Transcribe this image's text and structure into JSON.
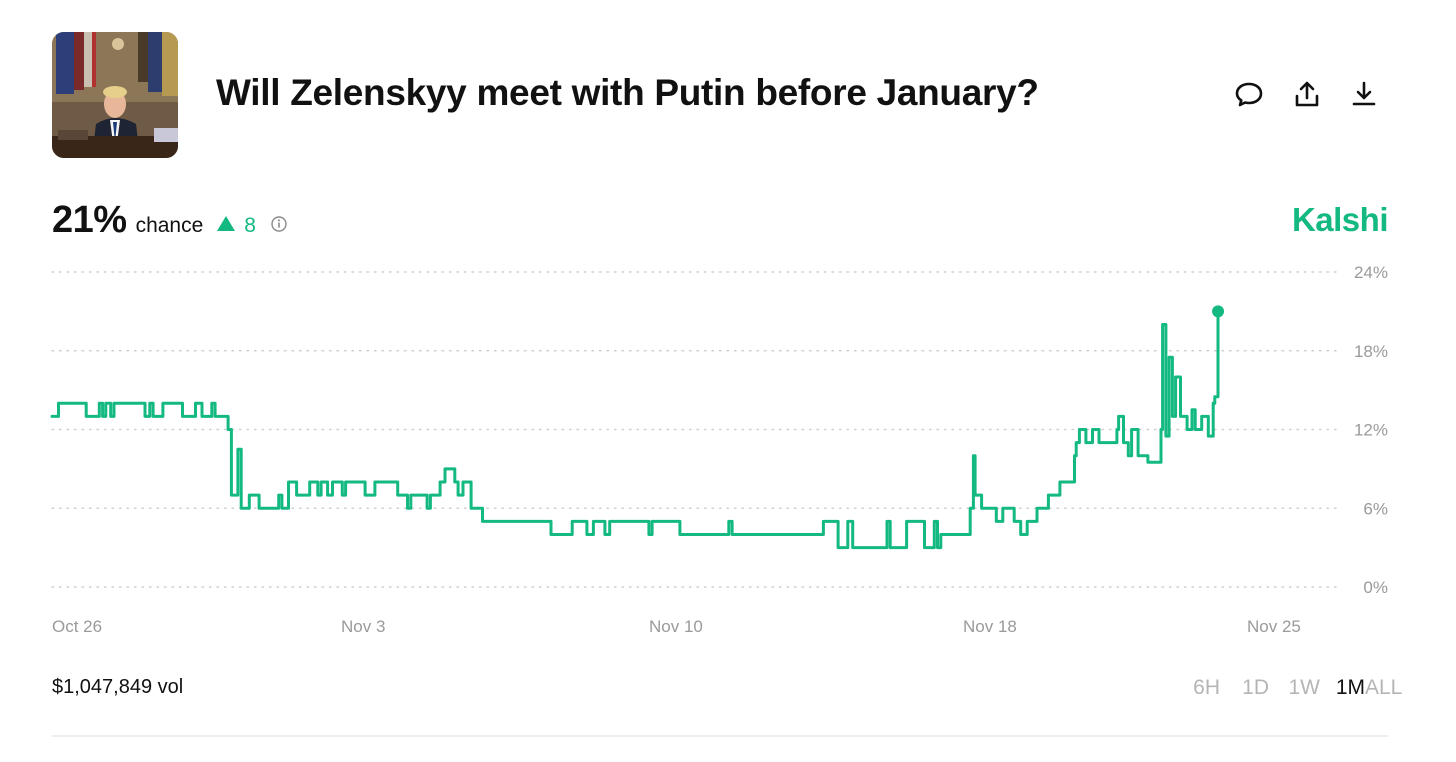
{
  "header": {
    "title": "Will Zelenskyy meet with Putin before January?",
    "thumbnail_icon": "market-photo",
    "actions": [
      {
        "name": "comment-button",
        "icon": "comment-icon"
      },
      {
        "name": "share-button",
        "icon": "share-icon"
      },
      {
        "name": "download-button",
        "icon": "download-icon"
      }
    ]
  },
  "probability": {
    "value": "21%",
    "label": "chance",
    "delta": "8",
    "delta_direction": "up",
    "info_icon": "info-icon"
  },
  "brand": "Kalshi",
  "colors": {
    "accent": "#13b981",
    "grid": "#cfcfcf",
    "axis_text": "#9a9a9a",
    "inactive_range": "#b5b5b5"
  },
  "footer": {
    "volume": "$1,047,849 vol",
    "ranges": [
      "6H",
      "1D",
      "1W",
      "1M",
      "ALL"
    ],
    "active_range": "1M"
  },
  "chart_data": {
    "type": "line",
    "step": true,
    "x_unit": "date (Oct 26 to Nov 26)",
    "y_unit": "%",
    "ylim": [
      0,
      24
    ],
    "y_ticks": [
      "24%",
      "18%",
      "12%",
      "6%",
      "0%"
    ],
    "x_tick_labels": [
      "Oct 26",
      "Nov 3",
      "Nov 10",
      "Nov 18",
      "Nov 25"
    ],
    "grid": true,
    "series": [
      {
        "color": "#13b981",
        "points": [
          [
            "Oct 26 00:00",
            13
          ],
          [
            "Oct 26 04:00",
            14
          ],
          [
            "Oct 26 21:00",
            13
          ],
          [
            "Oct 27 05:00",
            14
          ],
          [
            "Oct 27 07:00",
            13
          ],
          [
            "Oct 27 09:00",
            14
          ],
          [
            "Oct 27 12:00",
            13
          ],
          [
            "Oct 27 14:00",
            14
          ],
          [
            "Oct 28 09:00",
            13
          ],
          [
            "Oct 28 12:00",
            14
          ],
          [
            "Oct 28 14:00",
            13
          ],
          [
            "Oct 28 20:00",
            14
          ],
          [
            "Oct 29 08:00",
            13
          ],
          [
            "Oct 29 16:00",
            14
          ],
          [
            "Oct 29 20:00",
            13
          ],
          [
            "Oct 30 02:00",
            14
          ],
          [
            "Oct 30 04:00",
            13
          ],
          [
            "Oct 30 12:00",
            12
          ],
          [
            "Oct 30 14:00",
            7
          ],
          [
            "Oct 30 18:00",
            10.5
          ],
          [
            "Oct 30 20:00",
            6
          ],
          [
            "Oct 31 01:00",
            7
          ],
          [
            "Oct 31 07:00",
            6
          ],
          [
            "Oct 31 19:00",
            7
          ],
          [
            "Oct 31 21:00",
            6
          ],
          [
            "Nov 1 01:00",
            8
          ],
          [
            "Nov 1 06:00",
            7
          ],
          [
            "Nov 1 14:00",
            8
          ],
          [
            "Nov 1 19:00",
            7
          ],
          [
            "Nov 1 21:00",
            8
          ],
          [
            "Nov 2 01:00",
            7
          ],
          [
            "Nov 2 04:00",
            8
          ],
          [
            "Nov 2 10:00",
            7
          ],
          [
            "Nov 2 12:00",
            8
          ],
          [
            "Nov 3 00:00",
            7
          ],
          [
            "Nov 3 06:00",
            8
          ],
          [
            "Nov 3 20:00",
            7
          ],
          [
            "Nov 4 02:00",
            6
          ],
          [
            "Nov 4 04:00",
            7
          ],
          [
            "Nov 4 14:00",
            6
          ],
          [
            "Nov 4 16:00",
            7
          ],
          [
            "Nov 4 22:00",
            8
          ],
          [
            "Nov 5 01:00",
            9
          ],
          [
            "Nov 5 07:00",
            8
          ],
          [
            "Nov 5 09:00",
            7
          ],
          [
            "Nov 5 12:00",
            8
          ],
          [
            "Nov 5 17:00",
            6
          ],
          [
            "Nov 6 00:00",
            5
          ],
          [
            "Nov 7 18:00",
            4
          ],
          [
            "Nov 8 07:00",
            5
          ],
          [
            "Nov 8 16:00",
            4
          ],
          [
            "Nov 8 20:00",
            5
          ],
          [
            "Nov 9 03:00",
            4
          ],
          [
            "Nov 9 06:00",
            5
          ],
          [
            "Nov 10 06:00",
            4
          ],
          [
            "Nov 10 08:00",
            5
          ],
          [
            "Nov 11 01:00",
            4
          ],
          [
            "Nov 12 07:00",
            5
          ],
          [
            "Nov 12 09:00",
            4
          ],
          [
            "Nov 14 15:00",
            4
          ],
          [
            "Nov 14 17:00",
            5
          ],
          [
            "Nov 15 02:00",
            3
          ],
          [
            "Nov 15 08:00",
            5
          ],
          [
            "Nov 15 11:00",
            3
          ],
          [
            "Nov 16 08:00",
            5
          ],
          [
            "Nov 16 10:00",
            3
          ],
          [
            "Nov 16 20:00",
            5
          ],
          [
            "Nov 17 07:00",
            3
          ],
          [
            "Nov 17 13:00",
            5
          ],
          [
            "Nov 17 15:00",
            3
          ],
          [
            "Nov 17 17:00",
            4
          ],
          [
            "Nov 18 11:00",
            6
          ],
          [
            "Nov 18 13:00",
            10
          ],
          [
            "Nov 18 14:00",
            7
          ],
          [
            "Nov 18 18:00",
            6
          ],
          [
            "Nov 19 03:00",
            5
          ],
          [
            "Nov 19 07:00",
            6
          ],
          [
            "Nov 19 14:00",
            5
          ],
          [
            "Nov 19 18:00",
            4
          ],
          [
            "Nov 19 22:00",
            5
          ],
          [
            "Nov 20 04:00",
            6
          ],
          [
            "Nov 20 11:00",
            7
          ],
          [
            "Nov 20 18:00",
            8
          ],
          [
            "Nov 21 03:00",
            10
          ],
          [
            "Nov 21 04:00",
            11
          ],
          [
            "Nov 21 06:00",
            12
          ],
          [
            "Nov 21 10:00",
            11
          ],
          [
            "Nov 21 14:00",
            12
          ],
          [
            "Nov 21 18:00",
            11
          ],
          [
            "Nov 22 05:00",
            12
          ],
          [
            "Nov 22 06:00",
            13
          ],
          [
            "Nov 22 09:00",
            11
          ],
          [
            "Nov 22 12:00",
            10
          ],
          [
            "Nov 22 14:00",
            12
          ],
          [
            "Nov 22 18:00",
            10
          ],
          [
            "Nov 23 00:00",
            9.5
          ],
          [
            "Nov 23 08:00",
            12
          ],
          [
            "Nov 23 09:00",
            20
          ],
          [
            "Nov 23 11:00",
            11.5
          ],
          [
            "Nov 23 13:00",
            17.5
          ],
          [
            "Nov 23 15:00",
            13
          ],
          [
            "Nov 23 17:00",
            16
          ],
          [
            "Nov 23 20:00",
            13
          ],
          [
            "Nov 24 00:00",
            12
          ],
          [
            "Nov 24 03:00",
            13.5
          ],
          [
            "Nov 24 05:00",
            12
          ],
          [
            "Nov 24 09:00",
            13
          ],
          [
            "Nov 24 13:00",
            11.5
          ],
          [
            "Nov 24 16:00",
            14
          ],
          [
            "Nov 24 17:00",
            14.5
          ],
          [
            "Nov 24 19:00",
            21
          ]
        ]
      }
    ]
  }
}
